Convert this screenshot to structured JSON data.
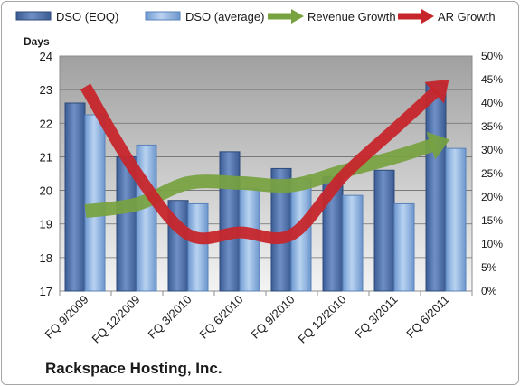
{
  "chart_data": {
    "type": "bar",
    "title": "",
    "ylabel_left": "Days",
    "ylabel_right": "",
    "ylim_left": [
      17,
      24
    ],
    "ylim_right": [
      0,
      50
    ],
    "left_ticks": [
      "17",
      "18",
      "19",
      "20",
      "21",
      "22",
      "23",
      "24"
    ],
    "right_ticks": [
      "0%",
      "5%",
      "10%",
      "15%",
      "20%",
      "25%",
      "30%",
      "35%",
      "40%",
      "45%",
      "50%"
    ],
    "categories": [
      "FQ 9/2009",
      "FQ 12/2009",
      "FQ 3/2010",
      "FQ 6/2010",
      "FQ 9/2010",
      "FQ 12/2010",
      "FQ 3/2011",
      "FQ 6/2011"
    ],
    "series": [
      {
        "name": "DSO (EOQ)",
        "kind": "bar",
        "axis": "left",
        "color": "#4f6fa8",
        "values": [
          22.6,
          21.0,
          19.7,
          21.15,
          20.65,
          20.4,
          20.6,
          23.2
        ]
      },
      {
        "name": "DSO (average)",
        "kind": "bar",
        "axis": "left",
        "color": "#8fb3e0",
        "values": [
          22.25,
          21.35,
          19.6,
          20.05,
          20.35,
          19.85,
          19.6,
          21.25
        ]
      },
      {
        "name": "Revenue Growth",
        "kind": "line-arrow",
        "axis": "right",
        "color": "#77a23f",
        "values": [
          17,
          18.5,
          23,
          23,
          22.5,
          25.5,
          28.5,
          32
        ]
      },
      {
        "name": "AR Growth",
        "kind": "line-arrow",
        "axis": "right",
        "color": "#c6262b",
        "values": [
          43.5,
          25,
          12,
          12.5,
          12,
          24.5,
          34.5,
          44.5
        ]
      }
    ],
    "legend_position": "top",
    "grid": true
  },
  "footer": {
    "company": "Rackspace Hosting, Inc."
  }
}
